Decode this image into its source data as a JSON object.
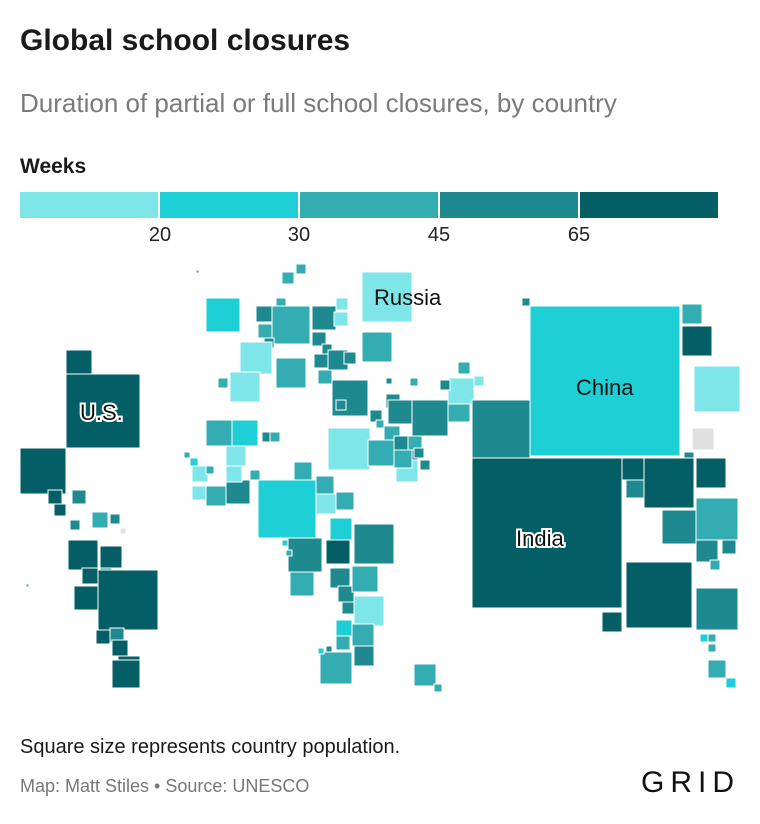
{
  "title": "Global school closures",
  "subtitle": "Duration of partial or full school closures, by country",
  "legend": {
    "title": "Weeks",
    "colors": [
      "#7ee6e8",
      "#1fcfd6",
      "#34adb2",
      "#1e8a8f",
      "#045e66"
    ],
    "ticks": [
      "20",
      "30",
      "45",
      "65"
    ]
  },
  "labels": {
    "us": "U.S.",
    "russia": "Russia",
    "china": "China",
    "india": "India"
  },
  "note": "Square size represents country population.",
  "credit": "Map: Matt Stiles • Source: UNESCO",
  "logo": "GRID",
  "colors": {
    "no_data": "#e0e0e0"
  }
}
